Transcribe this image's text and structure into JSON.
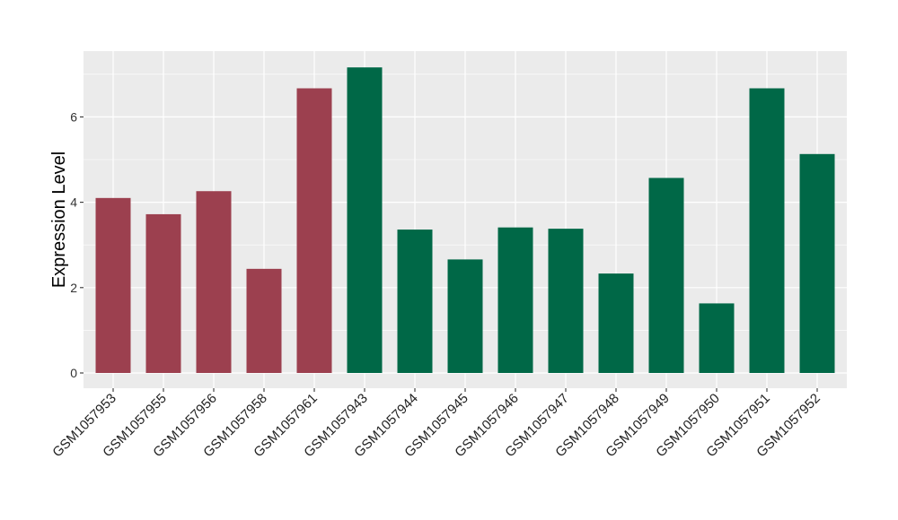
{
  "chart_data": {
    "type": "bar",
    "title": "",
    "xlabel": "",
    "ylabel": "Expression Level",
    "ylim": [
      0,
      7.4
    ],
    "yticks": [
      0,
      2,
      4,
      6
    ],
    "grid": true,
    "legend": "none",
    "categories": [
      "GSM1057953",
      "GSM1057955",
      "GSM1057956",
      "GSM1057958",
      "GSM1057961",
      "GSM1057943",
      "GSM1057944",
      "GSM1057945",
      "GSM1057946",
      "GSM1057947",
      "GSM1057948",
      "GSM1057949",
      "GSM1057950",
      "GSM1057951",
      "GSM1057952"
    ],
    "values": [
      4.1,
      3.72,
      4.26,
      2.44,
      6.67,
      7.16,
      3.36,
      2.66,
      3.41,
      3.38,
      2.33,
      4.57,
      1.63,
      6.67,
      5.13
    ],
    "bar_colors": [
      "#9c404f",
      "#9c404f",
      "#9c404f",
      "#9c404f",
      "#9c404f",
      "#006847",
      "#006847",
      "#006847",
      "#006847",
      "#006847",
      "#006847",
      "#006847",
      "#006847",
      "#006847",
      "#006847"
    ],
    "panel_background": "#ebebeb",
    "grid_color": "#ffffff"
  }
}
